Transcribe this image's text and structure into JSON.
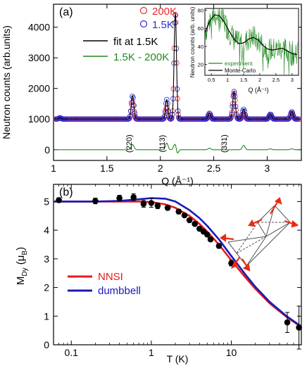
{
  "chart_data": [
    {
      "panel_label": "(a)",
      "type": "scatter",
      "xlabel": "Q (Å⁻¹)",
      "ylabel": "Neutron counts (arb.units)",
      "xlim": [
        1.0,
        3.32
      ],
      "ylim": [
        -350,
        4750
      ],
      "xticks": [
        "1",
        "1.5",
        "2",
        "2.5",
        "3"
      ],
      "yticks": [
        "0",
        "1000",
        "2000",
        "3000",
        "4000"
      ],
      "legend": {
        "placement": "top-left",
        "entries": [
          {
            "label": "200K",
            "color": "#e8282a",
            "marker": "circle"
          },
          {
            "label": "1.5K",
            "color": "#2b2bd6",
            "marker": "circle"
          },
          {
            "label": "fit at 1.5K",
            "color": "#000000",
            "marker": "line"
          },
          {
            "label": "1.5K - 200K",
            "color": "#1f8a1f",
            "marker": "line"
          }
        ]
      },
      "peak_annotations": [
        {
          "label": "(220)",
          "x": 1.73,
          "y": 200
        },
        {
          "label": "(113)",
          "x": 2.04,
          "y": 200
        },
        {
          "label": "(331)",
          "x": 2.62,
          "y": 200
        }
      ],
      "background_level": 1000,
      "peaks": [
        {
          "q": 1.06,
          "h_200K": 30,
          "h_1p5K": 40,
          "width": 0.012
        },
        {
          "q": 1.74,
          "h_200K": 560,
          "h_1p5K": 760,
          "width": 0.012
        },
        {
          "q": 2.06,
          "h_200K": 380,
          "h_1p5K": 640,
          "width": 0.011
        },
        {
          "q": 2.14,
          "h_200K": 3500,
          "h_1p5K": 3480,
          "width": 0.011
        },
        {
          "q": 2.46,
          "h_200K": 140,
          "h_1p5K": 190,
          "width": 0.012
        },
        {
          "q": 2.69,
          "h_200K": 860,
          "h_1p5K": 900,
          "width": 0.012
        },
        {
          "q": 2.78,
          "h_200K": 180,
          "h_1p5K": 320,
          "width": 0.012
        },
        {
          "q": 3.03,
          "h_200K": 120,
          "h_1p5K": 160,
          "width": 0.012
        },
        {
          "q": 3.23,
          "h_200K": 200,
          "h_1p5K": 240,
          "width": 0.012
        }
      ],
      "difference_peaks": [
        {
          "q": 1.74,
          "h": 170,
          "width": 0.013
        },
        {
          "q": 2.06,
          "h": 220,
          "width": 0.012
        },
        {
          "q": 2.13,
          "h": 80,
          "width": 0.012
        },
        {
          "q": 2.46,
          "h": 50,
          "width": 0.012
        },
        {
          "q": 2.78,
          "h": 140,
          "width": 0.013
        },
        {
          "q": 3.03,
          "h": 30,
          "width": 0.012
        },
        {
          "q": 3.23,
          "h": 30,
          "width": 0.012
        }
      ],
      "inset": {
        "type": "line",
        "ylabel": "Neutron counts (arb. units)",
        "xlabel": "Q (Å⁻¹)",
        "xlim": [
          0.3,
          3.2
        ],
        "ylim": [
          8,
          82
        ],
        "xticks": [
          "0.5",
          "1",
          "1.5",
          "2",
          "2.5",
          "3"
        ],
        "yticks": [
          "20",
          "40",
          "60",
          "80"
        ],
        "legend": [
          {
            "label": "experiment",
            "color": "#1f8a1f"
          },
          {
            "label": "Monte-Carlo",
            "color": "#000000"
          }
        ],
        "monte_carlo": {
          "x": [
            0.3,
            0.45,
            0.6,
            0.75,
            0.9,
            1.05,
            1.2,
            1.35,
            1.5,
            1.65,
            1.8,
            1.95,
            2.1,
            2.25,
            2.4,
            2.55,
            2.7,
            2.85,
            3.0,
            3.15
          ],
          "y": [
            55,
            68,
            75,
            74,
            67,
            57,
            48,
            43,
            44,
            48,
            50,
            47,
            41,
            37,
            36,
            37,
            38,
            35,
            32,
            31
          ]
        }
      }
    },
    {
      "panel_label": "(b)",
      "type": "scatter",
      "xlabel": "T (K)",
      "ylabel": "M_Dy (μ_B)",
      "xscale": "log",
      "xlim": [
        0.06,
        75
      ],
      "ylim": [
        0,
        5.6
      ],
      "xticks": [
        "0.1",
        "1",
        "10"
      ],
      "yticks": [
        "0",
        "1",
        "2",
        "3",
        "4",
        "5"
      ],
      "legend": {
        "placement": "lower-left",
        "entries": [
          {
            "label": "NNSI",
            "color": "#e41a1c"
          },
          {
            "label": "dumbbell",
            "color": "#1a1ab8"
          }
        ]
      },
      "points": {
        "x": [
          0.07,
          0.2,
          0.4,
          0.6,
          0.8,
          1.0,
          1.2,
          1.6,
          2.2,
          2.6,
          3.0,
          3.5,
          4.0,
          4.5,
          5.0,
          5.5,
          7.0,
          10.0,
          50.0,
          70.0
        ],
        "y": [
          5.05,
          5.02,
          5.12,
          5.15,
          4.92,
          4.95,
          4.85,
          4.78,
          4.65,
          4.52,
          4.35,
          4.22,
          4.05,
          3.95,
          3.85,
          3.68,
          3.45,
          2.85,
          0.78,
          0.6
        ],
        "yerr": [
          0.08,
          0.1,
          0.1,
          0.12,
          0.12,
          0.15,
          0.1,
          0.08,
          0.08,
          0.06,
          0.06,
          0.06,
          0.06,
          0.06,
          0.06,
          0.06,
          0.08,
          0.1,
          0.35,
          0.75
        ]
      },
      "series": [
        {
          "name": "NNSI",
          "x": [
            0.06,
            0.1,
            0.2,
            0.4,
            0.7,
            1.0,
            1.5,
            2.0,
            3.0,
            4.0,
            5.0,
            7.0,
            10.0,
            15.0,
            20.0,
            30.0,
            50.0,
            75.0
          ],
          "y": [
            5.0,
            5.0,
            5.0,
            5.0,
            5.0,
            4.98,
            4.9,
            4.78,
            4.5,
            4.22,
            3.95,
            3.5,
            2.95,
            2.35,
            1.95,
            1.45,
            0.95,
            0.62
          ]
        },
        {
          "name": "dumbbell",
          "x": [
            0.06,
            0.1,
            0.2,
            0.4,
            0.7,
            1.0,
            1.5,
            2.0,
            3.0,
            4.0,
            5.0,
            7.0,
            10.0,
            15.0,
            20.0,
            30.0,
            50.0,
            75.0
          ],
          "y": [
            5.0,
            5.0,
            5.0,
            5.02,
            5.08,
            5.12,
            5.1,
            5.0,
            4.7,
            4.42,
            4.15,
            3.68,
            3.1,
            2.45,
            2.02,
            1.5,
            0.98,
            0.64
          ]
        }
      ]
    }
  ]
}
